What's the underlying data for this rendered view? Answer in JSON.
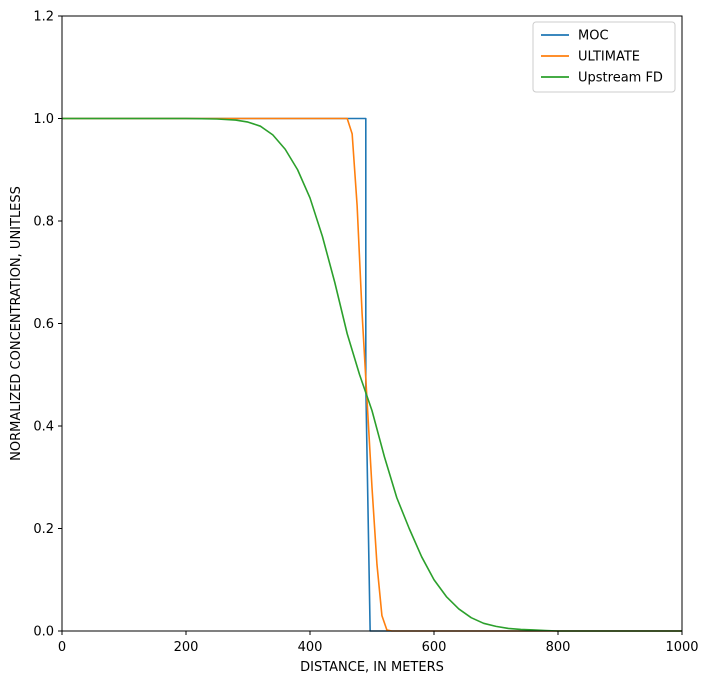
{
  "chart_data": {
    "type": "line",
    "title": "",
    "xlabel": "DISTANCE, IN METERS",
    "ylabel": "NORMALIZED CONCENTRATION, UNITLESS",
    "xlim": [
      0,
      1000
    ],
    "ylim": [
      0,
      1.2
    ],
    "xticks": [
      "0",
      "200",
      "400",
      "600",
      "800",
      "1000"
    ],
    "yticks": [
      "0.0",
      "0.2",
      "0.4",
      "0.6",
      "0.8",
      "1.0",
      "1.2"
    ],
    "xtick_values": [
      0,
      200,
      400,
      600,
      800,
      1000
    ],
    "ytick_values": [
      0,
      0.2,
      0.4,
      0.6,
      0.8,
      1.0,
      1.2
    ],
    "grid": false,
    "legend": "top-right",
    "series": [
      {
        "name": "MOC",
        "color": "#1f77b4",
        "x": [
          0,
          490,
          490,
          497,
          1000
        ],
        "y": [
          1.0,
          1.0,
          0.48,
          0.0,
          0.0
        ]
      },
      {
        "name": "ULTIMATE",
        "color": "#ff7f0e",
        "x": [
          0,
          450,
          460,
          468,
          476,
          484,
          492,
          500,
          508,
          516,
          524,
          532,
          1000
        ],
        "y": [
          1.0,
          1.0,
          1.0,
          0.97,
          0.83,
          0.62,
          0.45,
          0.28,
          0.13,
          0.03,
          0.002,
          0.0,
          0.0
        ]
      },
      {
        "name": "Upstream FD",
        "color": "#2ca02c",
        "x": [
          0,
          200,
          250,
          280,
          300,
          320,
          340,
          360,
          380,
          400,
          420,
          440,
          460,
          480,
          500,
          520,
          540,
          560,
          580,
          600,
          620,
          640,
          660,
          680,
          700,
          720,
          740,
          760,
          780,
          800,
          850,
          900,
          1000
        ],
        "y": [
          1.0,
          1.0,
          0.999,
          0.997,
          0.993,
          0.985,
          0.968,
          0.94,
          0.9,
          0.845,
          0.77,
          0.68,
          0.58,
          0.5,
          0.43,
          0.34,
          0.26,
          0.2,
          0.145,
          0.1,
          0.067,
          0.043,
          0.026,
          0.015,
          0.009,
          0.005,
          0.003,
          0.002,
          0.001,
          0.0,
          0.0,
          0.0,
          0.0
        ]
      }
    ]
  }
}
